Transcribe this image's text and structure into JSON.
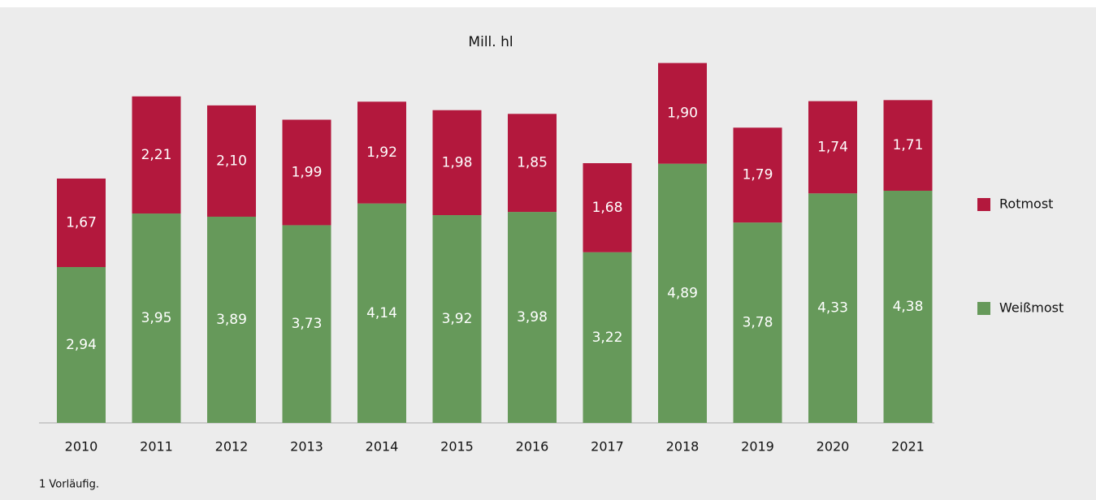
{
  "chart_data": {
    "type": "stacked_bar",
    "title": "Mill. hl",
    "categories": [
      "2010",
      "2011",
      "2012",
      "2013",
      "2014",
      "2015",
      "2016",
      "2017",
      "2018",
      "2019",
      "2020",
      "2021"
    ],
    "series": [
      {
        "name": "Weißmost",
        "color": "#66995a",
        "values": [
          2.94,
          3.95,
          3.89,
          3.73,
          4.14,
          3.92,
          3.98,
          3.22,
          4.89,
          3.78,
          4.33,
          4.38
        ],
        "value_labels": [
          "2,94",
          "3,95",
          "3,89",
          "3,73",
          "4,14",
          "3,92",
          "3,98",
          "3,22",
          "4,89",
          "3,78",
          "4,33",
          "4,38"
        ]
      },
      {
        "name": "Rotmost",
        "color": "#b3183d",
        "values": [
          1.67,
          2.21,
          2.1,
          1.99,
          1.92,
          1.98,
          1.85,
          1.68,
          1.9,
          1.79,
          1.74,
          1.71
        ],
        "value_labels": [
          "1,67",
          "2,21",
          "2,10",
          "1,99",
          "1,92",
          "1,98",
          "1,85",
          "1,68",
          "1,90",
          "1,79",
          "1,74",
          "1,71"
        ]
      }
    ],
    "footnote": "1 Vorläufig."
  }
}
